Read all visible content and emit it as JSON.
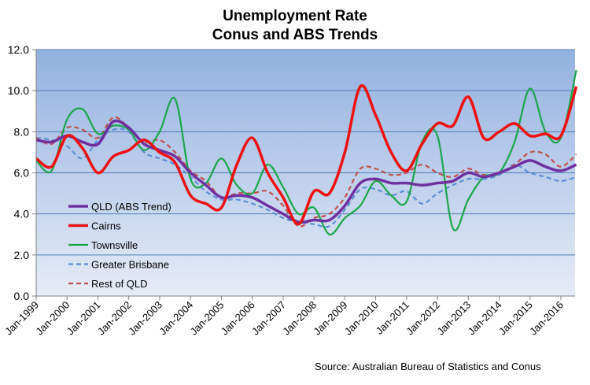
{
  "chart_data": {
    "type": "line",
    "title": "Unemployment Rate",
    "subtitle": "Conus and ABS Trends",
    "source": "Source: Australian Bureau of Statistics and Conus",
    "ylim": [
      0,
      12
    ],
    "yticks": [
      "0.0",
      "2.0",
      "4.0",
      "6.0",
      "8.0",
      "10.0",
      "12.0"
    ],
    "xticks": [
      "Jan-1999",
      "Jan-2000",
      "Jan-2001",
      "Jan-2002",
      "Jan-2003",
      "Jan-2004",
      "Jan-2005",
      "Jan-2006",
      "Jan-2007",
      "Jan-2008",
      "Jan-2009",
      "Jan-2010",
      "Jan-2011",
      "Jan-2012",
      "Jan-2013",
      "Jan-2014",
      "Jan-2015",
      "Jan-2016"
    ],
    "x_start": 1999.0,
    "x_step": 0.5,
    "x_end_axis": 2016.5,
    "legend_position": "left-middle",
    "grid": true,
    "series": [
      {
        "name": "QLD (ABS Trend)",
        "color": "#7030a0",
        "dash": false,
        "width": 3.5,
        "values": [
          7.6,
          7.5,
          7.8,
          7.5,
          7.4,
          8.5,
          8.2,
          7.4,
          7.1,
          6.8,
          6.0,
          5.4,
          4.8,
          4.9,
          4.8,
          4.4,
          4.0,
          3.6,
          3.7,
          3.7,
          4.4,
          5.5,
          5.7,
          5.5,
          5.5,
          5.4,
          5.5,
          5.6,
          6.0,
          5.8,
          6.0,
          6.3,
          6.6,
          6.3,
          6.1,
          6.4
        ]
      },
      {
        "name": "Cairns",
        "color": "#ee1111",
        "dash": false,
        "width": 3.5,
        "values": [
          6.7,
          6.3,
          7.8,
          7.2,
          6.0,
          6.8,
          7.1,
          7.6,
          7.0,
          6.5,
          4.9,
          4.5,
          4.3,
          6.4,
          7.7,
          6.0,
          4.8,
          3.5,
          5.1,
          5.0,
          7.0,
          10.2,
          8.8,
          7.0,
          6.1,
          7.4,
          8.4,
          8.3,
          9.7,
          7.7,
          8.0,
          8.4,
          7.8,
          7.9,
          7.8,
          10.2
        ]
      },
      {
        "name": "Townsville",
        "color": "#1aa64a",
        "dash": false,
        "width": 2.2,
        "values": [
          6.6,
          6.1,
          8.6,
          9.1,
          7.9,
          8.3,
          8.1,
          7.1,
          8.0,
          9.6,
          5.7,
          5.5,
          6.7,
          5.4,
          5.0,
          6.4,
          5.3,
          4.0,
          4.3,
          3.0,
          3.8,
          4.4,
          5.6,
          4.9,
          4.6,
          7.5,
          7.8,
          3.3,
          4.7,
          5.8,
          6.0,
          7.5,
          10.1,
          8.0,
          7.7,
          11.0
        ]
      },
      {
        "name": "Greater Brisbane",
        "color": "#5b8fd6",
        "dash": true,
        "width": 2.2,
        "values": [
          7.7,
          7.6,
          7.3,
          6.7,
          7.6,
          8.1,
          8.0,
          7.0,
          6.7,
          6.4,
          5.8,
          5.1,
          4.7,
          4.7,
          4.5,
          4.2,
          3.8,
          3.6,
          3.5,
          3.4,
          4.2,
          5.2,
          5.2,
          4.9,
          5.1,
          4.5,
          5.0,
          5.4,
          5.7,
          5.7,
          5.9,
          6.4,
          6.0,
          5.8,
          5.6,
          5.8
        ]
      },
      {
        "name": "Rest of QLD",
        "color": "#c0504d",
        "dash": true,
        "width": 2.2,
        "values": [
          7.7,
          7.4,
          8.2,
          8.1,
          7.7,
          8.7,
          8.2,
          7.5,
          7.6,
          7.0,
          6.1,
          5.6,
          4.8,
          5.0,
          5.0,
          5.1,
          4.4,
          3.4,
          3.8,
          4.0,
          4.8,
          6.2,
          6.2,
          5.9,
          6.0,
          6.4,
          6.0,
          5.8,
          6.2,
          5.9,
          6.0,
          6.4,
          7.0,
          6.9,
          6.3,
          6.9
        ]
      }
    ]
  }
}
